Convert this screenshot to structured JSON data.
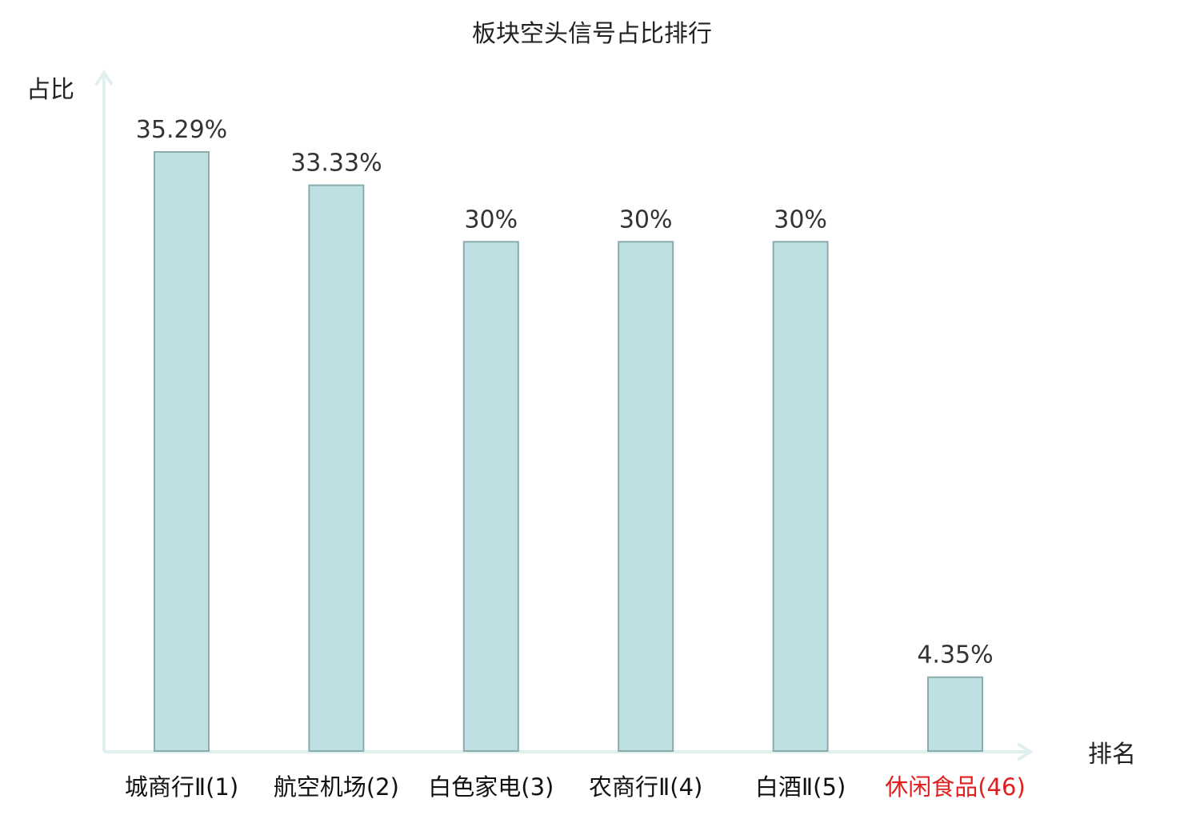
{
  "chart_data": {
    "type": "bar",
    "title": "板块空头信号占比排行",
    "ylabel": "占比",
    "xlabel": "排名",
    "categories": [
      "城商行Ⅱ(1)",
      "航空机场(2)",
      "白色家电(3)",
      "农商行Ⅱ(4)",
      "白酒Ⅱ(5)",
      "休闲食品(46)"
    ],
    "values": [
      35.29,
      33.33,
      30,
      30,
      30,
      4.35
    ],
    "value_labels": [
      "35.29%",
      "33.33%",
      "30%",
      "30%",
      "30%",
      "4.35%"
    ],
    "highlight_index": 5,
    "ylim": [
      0,
      35.29
    ],
    "grid": false,
    "legend": "none"
  },
  "colors": {
    "bar_fill": "#bde0e3",
    "bar_stroke": "#8aacad",
    "axis": "#dff1ef",
    "text": "#333333",
    "highlight_text": "#e01f1f"
  }
}
